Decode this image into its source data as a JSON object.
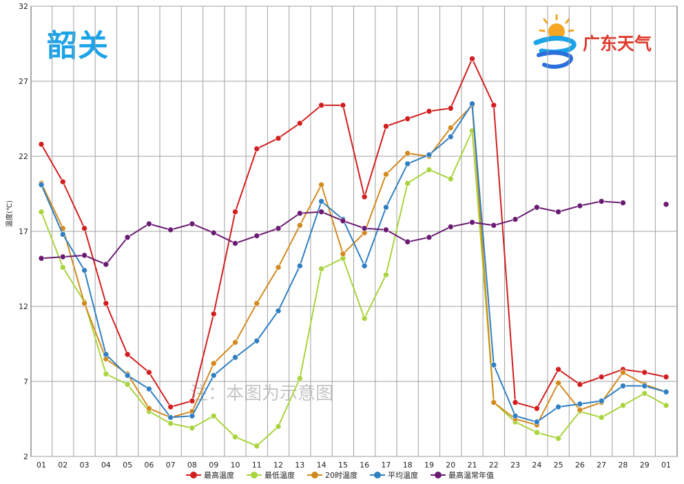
{
  "station": "韶关",
  "logo_text": "广东天气",
  "watermark_text": "注：本图为示意图",
  "chart_data": {
    "type": "line",
    "ylabel": "温度(℃)",
    "ylim": [
      2,
      32
    ],
    "yticks": [
      2,
      7,
      12,
      17,
      22,
      27,
      32
    ],
    "grid": true,
    "legend_position": "bottom",
    "categories": [
      "01",
      "02",
      "03",
      "04",
      "05",
      "06",
      "07",
      "08",
      "09",
      "10",
      "11",
      "12",
      "13",
      "14",
      "15",
      "16",
      "17",
      "18",
      "19",
      "20",
      "21",
      "22",
      "23",
      "24",
      "25",
      "26",
      "27",
      "28",
      "29",
      "01"
    ],
    "series": [
      {
        "name": "最高温度",
        "color": "#d21e1e",
        "values": [
          22.8,
          20.3,
          17.2,
          12.2,
          8.8,
          7.6,
          5.3,
          5.7,
          11.5,
          18.3,
          22.5,
          23.2,
          24.2,
          25.4,
          25.4,
          19.3,
          24.0,
          24.5,
          25.0,
          25.2,
          28.5,
          25.4,
          5.6,
          5.2,
          7.8,
          6.8,
          7.3,
          7.8,
          7.6,
          7.3
        ]
      },
      {
        "name": "最低温度",
        "color": "#a8d43c",
        "values": [
          18.3,
          14.6,
          12.3,
          7.5,
          6.8,
          5.0,
          4.2,
          3.9,
          4.7,
          3.3,
          2.7,
          4.0,
          7.2,
          14.5,
          15.2,
          11.2,
          14.1,
          20.2,
          21.1,
          20.5,
          23.7,
          5.6,
          4.3,
          3.6,
          3.2,
          5.0,
          4.6,
          5.4,
          6.2,
          5.4
        ]
      },
      {
        "name": "20时温度",
        "color": "#d28a1e",
        "values": [
          20.2,
          17.2,
          12.2,
          8.5,
          7.5,
          5.2,
          4.6,
          5.0,
          8.2,
          9.6,
          12.2,
          14.6,
          17.4,
          20.1,
          15.5,
          16.9,
          20.8,
          22.2,
          22.0,
          23.9,
          25.4,
          5.6,
          4.5,
          4.1,
          6.9,
          5.1,
          5.6,
          7.6,
          6.8,
          6.3
        ]
      },
      {
        "name": "平均温度",
        "color": "#2f7fc1",
        "values": [
          20.1,
          16.8,
          14.4,
          8.8,
          7.4,
          6.5,
          4.6,
          4.7,
          7.4,
          8.6,
          9.7,
          11.7,
          14.7,
          19.0,
          17.8,
          14.7,
          18.6,
          21.5,
          22.1,
          23.3,
          25.5,
          8.1,
          4.7,
          4.3,
          5.3,
          5.5,
          5.7,
          6.7,
          6.7,
          6.3
        ]
      },
      {
        "name": "最高温常年值",
        "color": "#6a1a72",
        "values": [
          15.2,
          15.3,
          15.4,
          14.8,
          16.6,
          17.5,
          17.1,
          17.5,
          16.9,
          16.2,
          16.7,
          17.2,
          18.2,
          18.3,
          17.7,
          17.2,
          17.1,
          16.3,
          16.6,
          17.3,
          17.6,
          17.4,
          17.8,
          18.6,
          18.3,
          18.7,
          19.0,
          18.9,
          null,
          18.8
        ]
      }
    ]
  },
  "colors": {
    "title": "#1aa3e8",
    "grid": "#a0a0a0",
    "axis": "#555555"
  },
  "logo_icon": "sun-and-wind-swirl-icon"
}
